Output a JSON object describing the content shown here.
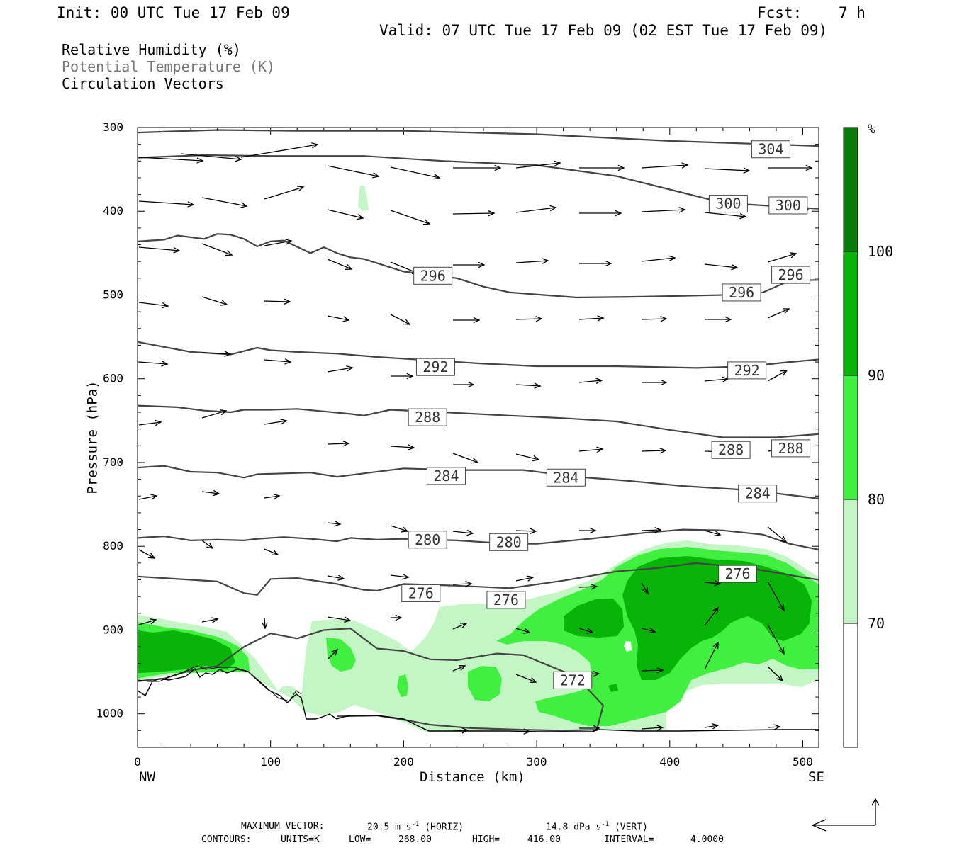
{
  "header": {
    "init": "Init: 00 UTC Tue 17 Feb 09",
    "fcst_label": "Fcst:",
    "fcst_value": "7 h",
    "valid": "Valid: 07 UTC Tue 17 Feb 09 (02 EST Tue 17 Feb 09)"
  },
  "legend": {
    "rh": "Relative Humidity (%)",
    "theta": "Potential Temperature (K)",
    "vectors": "Circulation Vectors"
  },
  "colors": {
    "rh70": "#c4f5c4",
    "rh80": "#3ff03f",
    "rh90": "#08b408",
    "rh100": "#087a08",
    "contour": "#444444",
    "theta_legend": "#777777"
  },
  "chart_data": {
    "type": "cross-section",
    "xlabel": "Distance (km)",
    "ylabel": "Pressure (hPa)",
    "x_ticks": [
      "0",
      "100",
      "200",
      "300",
      "400",
      "500"
    ],
    "y_ticks": [
      "300",
      "400",
      "500",
      "600",
      "700",
      "800",
      "900",
      "1000"
    ],
    "xlim": [
      0,
      512
    ],
    "ylim": [
      300,
      1040
    ],
    "left_end": "NW",
    "right_end": "SE",
    "colorbar": {
      "unit": "%",
      "levels": [
        "70",
        "80",
        "90",
        "100"
      ],
      "colors": [
        "#c4f5c4",
        "#3ff03f",
        "#08b408",
        "#087a08"
      ]
    },
    "theta_contour_labels": [
      {
        "value": "304",
        "x": 476,
        "p": 326
      },
      {
        "value": "300",
        "x": 444,
        "p": 391
      },
      {
        "value": "300",
        "x": 489,
        "p": 393
      },
      {
        "value": "296",
        "x": 222,
        "p": 477
      },
      {
        "value": "296",
        "x": 454,
        "p": 497
      },
      {
        "value": "296",
        "x": 491,
        "p": 476
      },
      {
        "value": "292",
        "x": 224,
        "p": 586
      },
      {
        "value": "292",
        "x": 458,
        "p": 590
      },
      {
        "value": "288",
        "x": 218,
        "p": 646
      },
      {
        "value": "288",
        "x": 446,
        "p": 685
      },
      {
        "value": "288",
        "x": 491,
        "p": 683
      },
      {
        "value": "284",
        "x": 232,
        "p": 716
      },
      {
        "value": "284",
        "x": 322,
        "p": 718
      },
      {
        "value": "284",
        "x": 466,
        "p": 737
      },
      {
        "value": "280",
        "x": 218,
        "p": 792
      },
      {
        "value": "280",
        "x": 279,
        "p": 795
      },
      {
        "value": "276",
        "x": 213,
        "p": 856
      },
      {
        "value": "276",
        "x": 277,
        "p": 864
      },
      {
        "value": "276",
        "x": 451,
        "p": 833
      },
      {
        "value": "272",
        "x": 327,
        "p": 960
      }
    ],
    "theta_contours": [
      {
        "value": 304,
        "points": [
          [
            0,
            306
          ],
          [
            60,
            303
          ],
          [
            120,
            304
          ],
          [
            200,
            304
          ],
          [
            300,
            308
          ],
          [
            400,
            316
          ],
          [
            512,
            322
          ]
        ]
      },
      {
        "value": 300,
        "points": [
          [
            0,
            336
          ],
          [
            50,
            333
          ],
          [
            100,
            334
          ],
          [
            170,
            334
          ],
          [
            230,
            340
          ],
          [
            300,
            345
          ],
          [
            360,
            358
          ],
          [
            400,
            374
          ],
          [
            440,
            390
          ],
          [
            470,
            393
          ],
          [
            512,
            397
          ]
        ]
      },
      {
        "value": 296,
        "points": [
          [
            0,
            436
          ],
          [
            20,
            434
          ],
          [
            30,
            429
          ],
          [
            50,
            433
          ],
          [
            60,
            427
          ],
          [
            70,
            428
          ],
          [
            80,
            433
          ],
          [
            90,
            442
          ],
          [
            100,
            436
          ],
          [
            110,
            435
          ],
          [
            130,
            450
          ],
          [
            140,
            443
          ],
          [
            150,
            450
          ],
          [
            160,
            455
          ],
          [
            170,
            457
          ],
          [
            180,
            462
          ],
          [
            200,
            472
          ],
          [
            240,
            480
          ],
          [
            260,
            490
          ],
          [
            280,
            497
          ],
          [
            330,
            503
          ],
          [
            380,
            502
          ],
          [
            440,
            500
          ],
          [
            470,
            497
          ],
          [
            490,
            483
          ],
          [
            512,
            482
          ]
        ]
      },
      {
        "value": 292,
        "points": [
          [
            0,
            556
          ],
          [
            20,
            562
          ],
          [
            40,
            568
          ],
          [
            70,
            571
          ],
          [
            80,
            567
          ],
          [
            90,
            563
          ],
          [
            100,
            566
          ],
          [
            120,
            568
          ],
          [
            150,
            570
          ],
          [
            180,
            574
          ],
          [
            220,
            578
          ],
          [
            260,
            582
          ],
          [
            300,
            585
          ],
          [
            360,
            585
          ],
          [
            420,
            587
          ],
          [
            460,
            585
          ],
          [
            490,
            580
          ],
          [
            512,
            577
          ]
        ]
      },
      {
        "value": 288,
        "points": [
          [
            0,
            632
          ],
          [
            30,
            634
          ],
          [
            50,
            638
          ],
          [
            70,
            640
          ],
          [
            80,
            637
          ],
          [
            100,
            637
          ],
          [
            120,
            636
          ],
          [
            140,
            639
          ],
          [
            160,
            642
          ],
          [
            170,
            644
          ],
          [
            190,
            637
          ],
          [
            230,
            640
          ],
          [
            280,
            644
          ],
          [
            320,
            647
          ],
          [
            360,
            651
          ],
          [
            400,
            661
          ],
          [
            440,
            670
          ],
          [
            480,
            670
          ],
          [
            512,
            666
          ]
        ]
      },
      {
        "value": 284,
        "points": [
          [
            0,
            706
          ],
          [
            20,
            704
          ],
          [
            40,
            711
          ],
          [
            60,
            712
          ],
          [
            80,
            718
          ],
          [
            90,
            714
          ],
          [
            110,
            713
          ],
          [
            130,
            712
          ],
          [
            150,
            717
          ],
          [
            170,
            713
          ],
          [
            200,
            707
          ],
          [
            240,
            709
          ],
          [
            290,
            709
          ],
          [
            330,
            717
          ],
          [
            370,
            722
          ],
          [
            410,
            728
          ],
          [
            460,
            733
          ],
          [
            512,
            743
          ]
        ]
      },
      {
        "value": 280,
        "points": [
          [
            0,
            790
          ],
          [
            20,
            788
          ],
          [
            40,
            793
          ],
          [
            60,
            792
          ],
          [
            80,
            793
          ],
          [
            90,
            791
          ],
          [
            110,
            789
          ],
          [
            130,
            791
          ],
          [
            150,
            794
          ],
          [
            160,
            790
          ],
          [
            180,
            792
          ],
          [
            200,
            791
          ],
          [
            240,
            793
          ],
          [
            280,
            797
          ],
          [
            300,
            797
          ],
          [
            340,
            791
          ],
          [
            380,
            784
          ],
          [
            410,
            780
          ],
          [
            440,
            781
          ],
          [
            470,
            786
          ],
          [
            490,
            797
          ],
          [
            512,
            804
          ]
        ]
      },
      {
        "value": 276,
        "points": [
          [
            0,
            836
          ],
          [
            20,
            838
          ],
          [
            40,
            840
          ],
          [
            60,
            842
          ],
          [
            80,
            856
          ],
          [
            90,
            858
          ],
          [
            100,
            839
          ],
          [
            120,
            838
          ],
          [
            150,
            845
          ],
          [
            170,
            852
          ],
          [
            180,
            853
          ],
          [
            200,
            845
          ],
          [
            240,
            847
          ],
          [
            280,
            850
          ],
          [
            320,
            841
          ],
          [
            360,
            830
          ],
          [
            390,
            826
          ],
          [
            420,
            820
          ],
          [
            460,
            826
          ],
          [
            500,
            837
          ],
          [
            512,
            840
          ]
        ]
      },
      {
        "value": 272,
        "points": [
          [
            0,
            961
          ],
          [
            20,
            958
          ],
          [
            40,
            948
          ],
          [
            60,
            943
          ],
          [
            80,
            920
          ],
          [
            100,
            904
          ],
          [
            120,
            910
          ],
          [
            140,
            900
          ],
          [
            160,
            898
          ],
          [
            180,
            922
          ],
          [
            200,
            925
          ],
          [
            220,
            935
          ],
          [
            240,
            936
          ],
          [
            270,
            928
          ],
          [
            290,
            930
          ],
          [
            310,
            943
          ],
          [
            330,
            956
          ],
          [
            350,
            990
          ],
          [
            345,
            1020
          ]
        ]
      },
      {
        "value": 268,
        "points": [
          [
            150,
            1003
          ],
          [
            180,
            1002
          ],
          [
            200,
            1007
          ],
          [
            220,
            1013
          ],
          [
            250,
            1017
          ],
          [
            290,
            1019
          ],
          [
            320,
            1020
          ],
          [
            345,
            1019
          ]
        ]
      }
    ],
    "vector_max": {
      "label": "MAXIMUM VECTOR:",
      "horiz": "20.5 m s",
      "horiz_unit": "(HORIZ)",
      "vert": "14.8 dPa s",
      "vert_unit": "(VERT)",
      "exponent": "-1"
    },
    "contour_info": {
      "label": "CONTOURS:",
      "units": "UNITS=K",
      "low": "LOW=",
      "low_value": "268.00",
      "high": "HIGH=",
      "high_value": "416.00",
      "interval": "INTERVAL=",
      "interval_value": "4.0000"
    }
  }
}
